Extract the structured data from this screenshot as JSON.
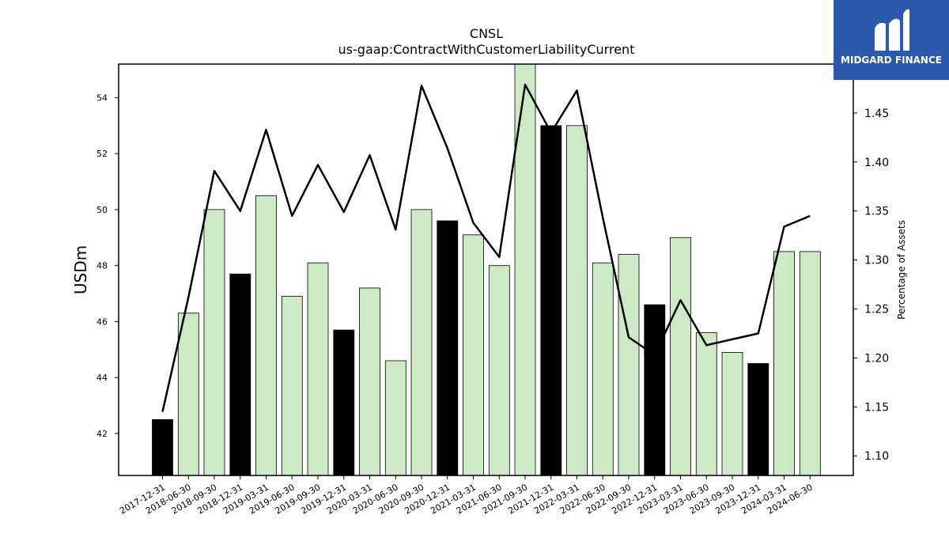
{
  "logo": {
    "brand": "MIDGARD FINANCE",
    "bg_color": "#2b5aad",
    "icon": "midgard-logo-icon"
  },
  "colors": {
    "annual_bar": "#000000",
    "quarter_bar": "#cde9c6",
    "line": "#000000"
  },
  "chart_data": {
    "type": "bar",
    "title": "CNSL",
    "subtitle": "us-gaap:ContractWithCustomerLiabilityCurrent",
    "ylabel": "USDm",
    "y2label": "Percentage of Assets",
    "ylim": [
      40.5,
      55.2
    ],
    "y2lim": [
      1.08,
      1.5
    ],
    "yticks": [
      "42",
      "44",
      "46",
      "48",
      "50",
      "52",
      "54"
    ],
    "y2ticks": [
      "1.10",
      "1.15",
      "1.20",
      "1.25",
      "1.30",
      "1.35",
      "1.40",
      "1.45"
    ],
    "categories": [
      "2017-12-31",
      "2018-06-30",
      "2018-09-30",
      "2018-12-31",
      "2019-03-31",
      "2019-06-30",
      "2019-09-30",
      "2019-12-31",
      "2020-03-31",
      "2020-06-30",
      "2020-09-30",
      "2020-12-31",
      "2021-03-31",
      "2021-06-30",
      "2021-09-30",
      "2021-12-31",
      "2022-03-31",
      "2022-06-30",
      "2022-09-30",
      "2022-12-31",
      "2023-03-31",
      "2023-06-30",
      "2023-09-30",
      "2023-12-31",
      "2024-03-31",
      "2024-06-30"
    ],
    "values": [
      42.5,
      46.3,
      50.0,
      47.7,
      50.5,
      46.9,
      48.1,
      45.7,
      47.2,
      44.6,
      50.0,
      49.6,
      49.1,
      48.0,
      55.2,
      53.0,
      53.0,
      48.1,
      48.4,
      46.6,
      49.0,
      45.6,
      44.9,
      44.5,
      48.5,
      48.5
    ],
    "annual": [
      true,
      false,
      false,
      true,
      false,
      false,
      false,
      true,
      false,
      false,
      false,
      true,
      false,
      false,
      false,
      true,
      false,
      false,
      false,
      true,
      false,
      false,
      false,
      true,
      false,
      false
    ],
    "line_series": [
      1.145,
      1.262,
      1.391,
      1.35,
      1.433,
      1.345,
      1.397,
      1.349,
      1.407,
      1.331,
      1.478,
      1.414,
      1.338,
      1.303,
      1.479,
      1.43,
      1.473,
      1.343,
      1.221,
      1.203,
      1.259,
      1.213,
      1.219,
      1.225,
      1.334,
      1.345
    ]
  }
}
